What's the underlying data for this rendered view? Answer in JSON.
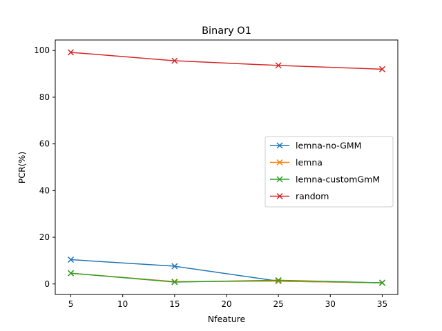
{
  "chart_data": {
    "type": "line",
    "title": "Binary O1",
    "xlabel": "Nfeature",
    "ylabel": "PCR(%)",
    "x": [
      5,
      15,
      25,
      35
    ],
    "xlim": [
      3.5,
      36.5
    ],
    "ylim": [
      -4.5,
      104.5
    ],
    "xticks": [
      5,
      10,
      15,
      20,
      25,
      30,
      35
    ],
    "yticks": [
      0,
      20,
      40,
      60,
      80,
      100
    ],
    "grid": false,
    "legend_position": "center-right",
    "marker": "x",
    "series": [
      {
        "name": "lemna-no-GMM",
        "color": "#1f77b4",
        "values": [
          10.4,
          7.6,
          1.2,
          0.5
        ]
      },
      {
        "name": "lemna",
        "color": "#ff7f0e",
        "values": [
          4.6,
          1.0,
          1.2,
          0.5
        ]
      },
      {
        "name": "lemna-customGmM",
        "color": "#2ca02c",
        "values": [
          4.6,
          0.8,
          1.6,
          0.5
        ]
      },
      {
        "name": "random",
        "color": "#d62728",
        "values": [
          99.2,
          95.6,
          93.6,
          92.0
        ]
      }
    ]
  }
}
